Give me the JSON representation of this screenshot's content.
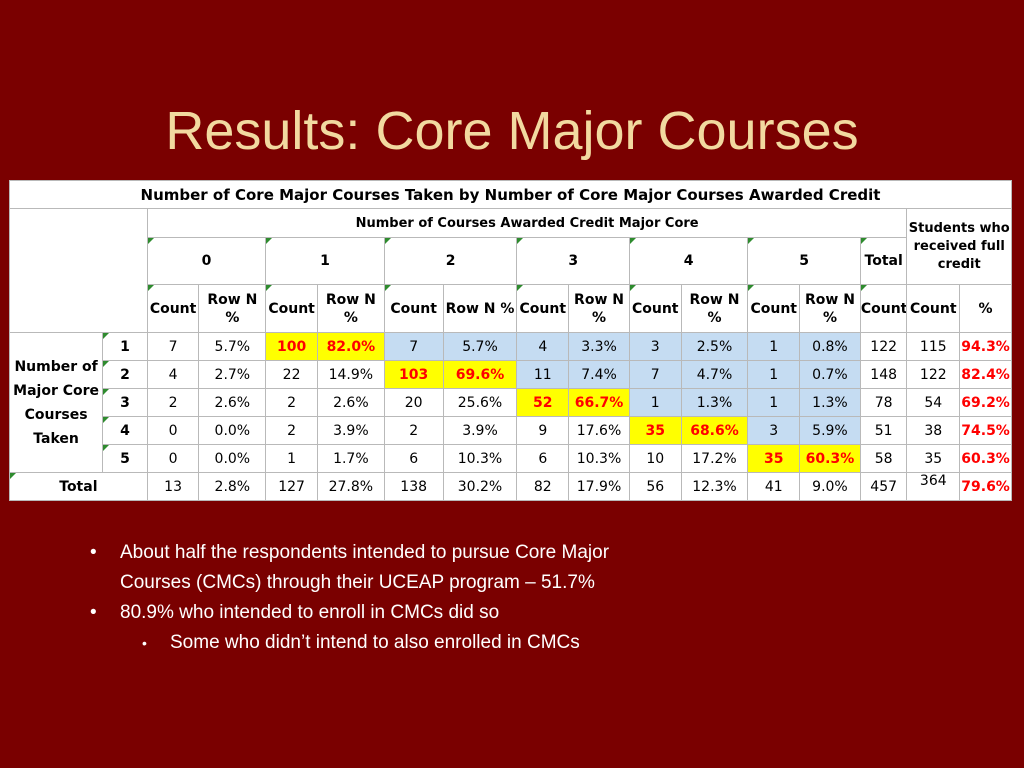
{
  "slide": {
    "title": "Results: Core Major Courses"
  },
  "table": {
    "title": "Number of Core Major Courses Taken by Number of Core Major Courses Awarded Credit",
    "awarded_header": "Number of Courses Awarded Credit Major Core",
    "full_credit_header": "Students who received full credit",
    "groups": [
      "0",
      "1",
      "2",
      "3",
      "4",
      "5"
    ],
    "total_label": "Total",
    "sub": {
      "count": "Count",
      "rown": "Row N %",
      "rown_inline": "Row N %",
      "pct": "%"
    },
    "row_label": "Number of Major Core Courses Taken",
    "rows": [
      {
        "label": "1",
        "cells": [
          "7",
          "5.7%",
          "100",
          "82.0%",
          "7",
          "5.7%",
          "4",
          "3.3%",
          "3",
          "2.5%",
          "1",
          "0.8%",
          "122",
          "115",
          "94.3%"
        ]
      },
      {
        "label": "2",
        "cells": [
          "4",
          "2.7%",
          "22",
          "14.9%",
          "103",
          "69.6%",
          "11",
          "7.4%",
          "7",
          "4.7%",
          "1",
          "0.7%",
          "148",
          "122",
          "82.4%"
        ]
      },
      {
        "label": "3",
        "cells": [
          "2",
          "2.6%",
          "2",
          "2.6%",
          "20",
          "25.6%",
          "52",
          "66.7%",
          "1",
          "1.3%",
          "1",
          "1.3%",
          "78",
          "54",
          "69.2%"
        ]
      },
      {
        "label": "4",
        "cells": [
          "0",
          "0.0%",
          "2",
          "3.9%",
          "2",
          "3.9%",
          "9",
          "17.6%",
          "35",
          "68.6%",
          "3",
          "5.9%",
          "51",
          "38",
          "74.5%"
        ]
      },
      {
        "label": "5",
        "cells": [
          "0",
          "0.0%",
          "1",
          "1.7%",
          "6",
          "10.3%",
          "6",
          "10.3%",
          "10",
          "17.2%",
          "35",
          "60.3%",
          "58",
          "35",
          "60.3%"
        ]
      },
      {
        "label": "Total",
        "cells": [
          "13",
          "2.8%",
          "127",
          "27.8%",
          "138",
          "30.2%",
          "82",
          "17.9%",
          "56",
          "12.3%",
          "41",
          "9.0%",
          "457",
          "364",
          "79.6%"
        ]
      }
    ],
    "colors": {
      "highlight": "#ffff00",
      "highlight_text": "#ff0000",
      "shade": "#c5dcf2",
      "pct_text": "#ff0000"
    }
  },
  "bullets": [
    {
      "level": 1,
      "lines": [
        "About half the respondents intended to pursue Core Major",
        "Courses (CMCs) through their UCEAP program – 51.7%"
      ]
    },
    {
      "level": 1,
      "lines": [
        "80.9% who intended to enroll in CMCs did so"
      ]
    },
    {
      "level": 2,
      "lines": [
        "Some who didn’t intend to also enrolled in CMCs"
      ]
    }
  ]
}
